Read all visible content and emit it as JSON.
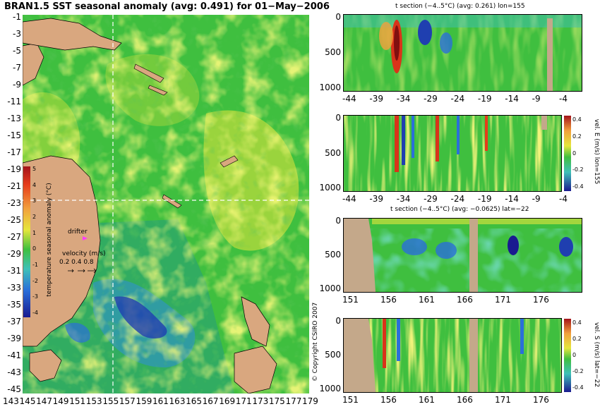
{
  "map": {
    "title": "BRAN1.5 SST seasonal anomaly (avg: 0.491) for 01−May−2006",
    "lat_labels": [
      "-1",
      "-3",
      "-5",
      "-7",
      "-9",
      "-11",
      "-13",
      "-15",
      "-17",
      "-19",
      "-21",
      "-23",
      "-25",
      "-27",
      "-29",
      "-31",
      "-33",
      "-35",
      "-37",
      "-39",
      "-41",
      "-43",
      "-45"
    ],
    "lon_labels": [
      "143",
      "145",
      "147",
      "149",
      "151",
      "153",
      "155",
      "157",
      "159",
      "161",
      "163",
      "165",
      "167",
      "169",
      "171",
      "173",
      "175",
      "177",
      "179"
    ],
    "colorbar_label": "temperature seasonal anomaly (°C)",
    "colorbar_ticks": [
      "5",
      "4",
      "3",
      "2",
      "1",
      "0",
      "-1",
      "-2",
      "-3",
      "-4"
    ],
    "drifter_label": "drifter",
    "velocity_label": "velocity (m/s)",
    "velocity_scale": "0.2 0.4 0.8",
    "copyright": "© Copyright CSIRO 2007"
  },
  "panels": [
    {
      "title": "t section (−4..5°C) (avg: 0.261) lon=155",
      "x_labels": [
        "-44",
        "-39",
        "-34",
        "-29",
        "-24",
        "-19",
        "-14",
        "-9",
        "-4"
      ],
      "y_labels": [
        "0",
        "500",
        "1000"
      ]
    },
    {
      "title": "",
      "x_labels": [
        "-44",
        "-39",
        "-34",
        "-29",
        "-24",
        "-19",
        "-14",
        "-9",
        "-4"
      ],
      "y_labels": [
        "0",
        "500",
        "1000"
      ],
      "colorbar_label": "vel. E (m/s) lon=155",
      "colorbar_ticks": [
        "0.4",
        "0.2",
        "0",
        "-0.2",
        "-0.4"
      ]
    },
    {
      "title": "t section (−4..5°C) (avg: −0.0625) lat=−22",
      "x_labels": [
        "151",
        "156",
        "161",
        "166",
        "171",
        "176"
      ],
      "y_labels": [
        "0",
        "500",
        "1000"
      ]
    },
    {
      "title": "",
      "x_labels": [
        "151",
        "156",
        "161",
        "166",
        "171",
        "176"
      ],
      "y_labels": [
        "0",
        "500",
        "1000"
      ],
      "colorbar_label": "vel. S (m/s) lat=−22",
      "colorbar_ticks": [
        "0.4",
        "0.2",
        "0",
        "-0.2",
        "-0.4"
      ]
    }
  ],
  "colors": {
    "land": "#d9a77f",
    "section_land": "#c4a88a",
    "ocean_green": "#3fbf3f",
    "anomaly_yellow": "#e6e63c",
    "cold_blue": "#2b6fd9",
    "warm_red": "#d9331a"
  }
}
